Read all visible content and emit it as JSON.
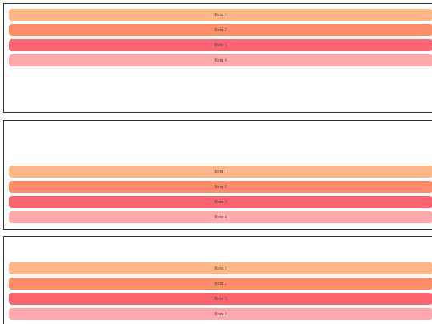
{
  "panels": [
    {
      "name": "top",
      "items": [
        {
          "label": "Item 1",
          "color": "#ffb585"
        },
        {
          "label": "Item 2",
          "color": "#ff8c68"
        },
        {
          "label": "Item 3",
          "color": "#ff636f"
        },
        {
          "label": "Item 4",
          "color": "#ffa9ac"
        }
      ]
    },
    {
      "name": "middle",
      "items": [
        {
          "label": "Item 1",
          "color": "#ffb585"
        },
        {
          "label": "Item 2",
          "color": "#ff8c68"
        },
        {
          "label": "Item 3",
          "color": "#ff636f"
        },
        {
          "label": "Item 4",
          "color": "#ffa9ac"
        }
      ]
    },
    {
      "name": "bottom",
      "items": [
        {
          "label": "Item 1",
          "color": "#ffb585"
        },
        {
          "label": "Item 2",
          "color": "#ff8c68"
        },
        {
          "label": "Item 3",
          "color": "#ff636f"
        },
        {
          "label": "Item 4",
          "color": "#ffa9ac"
        }
      ]
    }
  ]
}
